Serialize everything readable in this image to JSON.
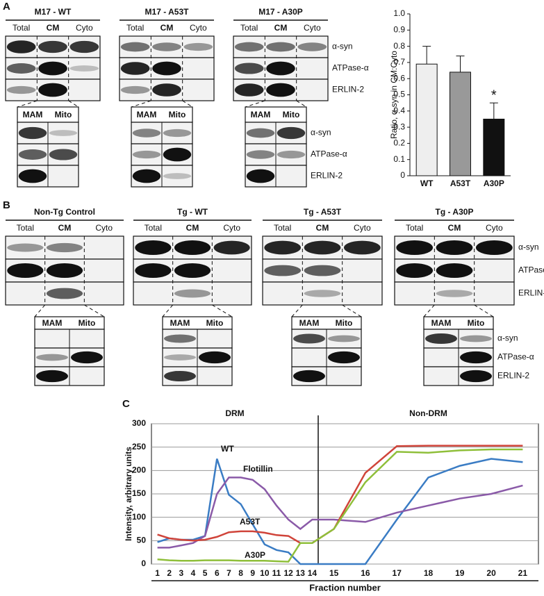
{
  "panel_a": {
    "label": "A",
    "groups": [
      "M17 - WT",
      "M17 - A53T",
      "M17 - A30P"
    ],
    "lanes": [
      "Total",
      "CM",
      "Cyto"
    ],
    "sub_lanes": [
      "MAM",
      "Mito"
    ],
    "proteins": [
      "α-syn",
      "ATPase-α",
      "ERLIN-2"
    ]
  },
  "panel_b": {
    "label": "B",
    "groups": [
      "Non-Tg Control",
      "Tg - WT",
      "Tg - A53T",
      "Tg - A30P"
    ],
    "lanes": [
      "Total",
      "CM",
      "Cyto"
    ],
    "sub_lanes": [
      "MAM",
      "Mito"
    ],
    "proteins": [
      "α-syn",
      "ATPase-α",
      "ERLIN-2"
    ]
  },
  "panel_c": {
    "label": "C"
  },
  "chart_data": [
    {
      "type": "bar",
      "y_label": "Ratio, α-syn in CM:Cyto",
      "categories": [
        "WT",
        "A53T",
        "A30P"
      ],
      "values": [
        0.69,
        0.64,
        0.35
      ],
      "errors": [
        0.11,
        0.1,
        0.1
      ],
      "colors": [
        "#eeeeee",
        "#999999",
        "#111111"
      ],
      "annotation": {
        "text": "*",
        "category": "A30P"
      },
      "ylim": [
        0,
        1
      ],
      "yticks": [
        0,
        0.1,
        0.2,
        0.3,
        0.4,
        0.5,
        0.6,
        0.7,
        0.8,
        0.9,
        {
          "value": 1,
          "label": "1.0"
        }
      ]
    },
    {
      "type": "line",
      "y_label": "Intensity, arbitrary units",
      "x_label": "Fraction number",
      "regions": [
        "DRM",
        "Non-DRM"
      ],
      "categories": [
        "1",
        "2",
        "3",
        "4",
        "5",
        "6",
        "7",
        "8",
        "9",
        "10",
        "11",
        "12",
        "13",
        "14",
        "15",
        "16",
        "17",
        "18",
        "19",
        "20",
        "21"
      ],
      "ylim": [
        0,
        300
      ],
      "yticks": [
        0,
        50,
        100,
        150,
        200,
        250,
        300
      ],
      "grid": true,
      "series": [
        {
          "name": "WT",
          "color": "#3a7cc4",
          "values": [
            47,
            55,
            52,
            52,
            60,
            225,
            148,
            128,
            85,
            42,
            30,
            25,
            0,
            0,
            0,
            0,
            95,
            185,
            210,
            225,
            218
          ]
        },
        {
          "name": "Flotillin",
          "color": "#8a5aa8",
          "values": [
            35,
            35,
            40,
            45,
            60,
            150,
            185,
            185,
            180,
            160,
            125,
            95,
            75,
            95,
            95,
            90,
            110,
            125,
            140,
            150,
            168
          ]
        },
        {
          "name": "A53T",
          "color": "#d0443a",
          "values": [
            63,
            55,
            52,
            50,
            52,
            58,
            68,
            70,
            70,
            67,
            62,
            60,
            45,
            45,
            75,
            195,
            252,
            253,
            253,
            253,
            253
          ]
        },
        {
          "name": "A30P",
          "color": "#8fbf3a",
          "values": [
            10,
            8,
            7,
            7,
            8,
            8,
            8,
            7,
            7,
            7,
            6,
            5,
            45,
            45,
            75,
            175,
            240,
            238,
            243,
            245,
            245
          ]
        }
      ]
    }
  ]
}
